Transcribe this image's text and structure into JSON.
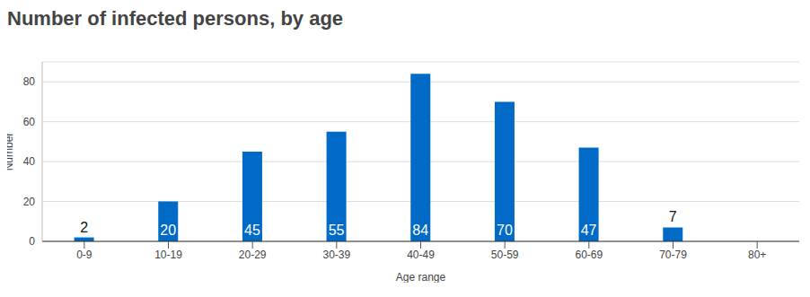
{
  "chart_data": {
    "type": "bar",
    "title": "Number of infected persons, by age",
    "x_label": "Age range",
    "y_label": "Number",
    "categories": [
      "0-9",
      "10-19",
      "20-29",
      "30-39",
      "40-49",
      "50-59",
      "60-69",
      "70-79",
      "80+"
    ],
    "values": [
      2,
      20,
      45,
      55,
      84,
      70,
      47,
      7,
      0
    ],
    "color": "#006ac6",
    "ylim": [
      0,
      90
    ],
    "yticks": [
      0,
      20,
      40,
      60,
      80
    ],
    "grid": true,
    "data_labels": true
  }
}
